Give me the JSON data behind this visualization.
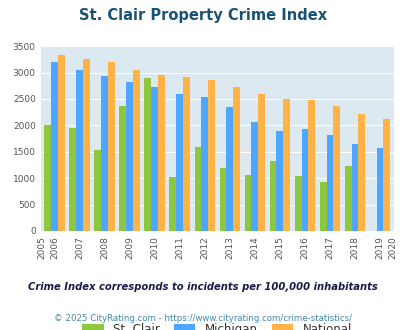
{
  "title": "St. Clair Property Crime Index",
  "plot_years": [
    2006,
    2007,
    2008,
    2009,
    2010,
    2011,
    2012,
    2013,
    2014,
    2015,
    2016,
    2017,
    2018,
    2019
  ],
  "all_years": [
    2005,
    2006,
    2007,
    2008,
    2009,
    2010,
    2011,
    2012,
    2013,
    2014,
    2015,
    2016,
    2017,
    2018,
    2019,
    2020
  ],
  "st_clair": [
    2000,
    1950,
    1530,
    2370,
    2900,
    1020,
    1600,
    1200,
    1060,
    1320,
    1050,
    930,
    1240,
    0
  ],
  "michigan": [
    3200,
    3050,
    2930,
    2830,
    2720,
    2600,
    2530,
    2340,
    2060,
    1900,
    1940,
    1810,
    1640,
    1570
  ],
  "national": [
    3330,
    3250,
    3200,
    3040,
    2950,
    2920,
    2860,
    2730,
    2600,
    2500,
    2480,
    2370,
    2220,
    2120
  ],
  "color_stclair": "#8dc63f",
  "color_michigan": "#4da6ff",
  "color_national": "#ffb347",
  "bg_color": "#dce9f0",
  "ylim": [
    0,
    3500
  ],
  "yticks": [
    0,
    500,
    1000,
    1500,
    2000,
    2500,
    3000,
    3500
  ],
  "subtitle": "Crime Index corresponds to incidents per 100,000 inhabitants",
  "footer": "© 2025 CityRating.com - https://www.cityrating.com/crime-statistics/",
  "title_color": "#1a5276",
  "subtitle_color": "#1a1a4a",
  "footer_color": "#4488aa"
}
